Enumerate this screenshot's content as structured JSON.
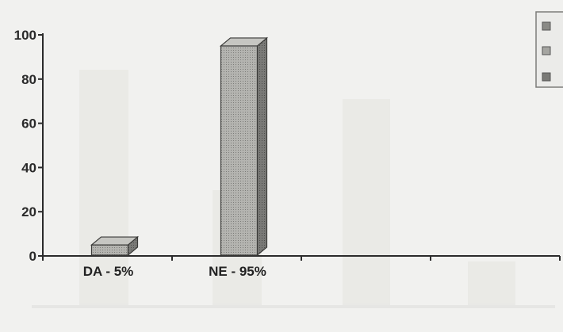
{
  "chart_data": {
    "type": "bar",
    "three_d": true,
    "categories": [
      "DA - 5%",
      "NE - 95%"
    ],
    "values": [
      5,
      95
    ],
    "ylim": [
      0,
      100
    ],
    "yticks": [
      0,
      20,
      40,
      60,
      80,
      100
    ],
    "grid": false,
    "legend": "top-right",
    "colors": {
      "bar_front": "#a8a8a4",
      "bar_side": "#6f6f6c",
      "bar_top": "#c6c6c2",
      "axis": "#2b2b2b",
      "legend_swatch": "#8a8a86"
    }
  }
}
